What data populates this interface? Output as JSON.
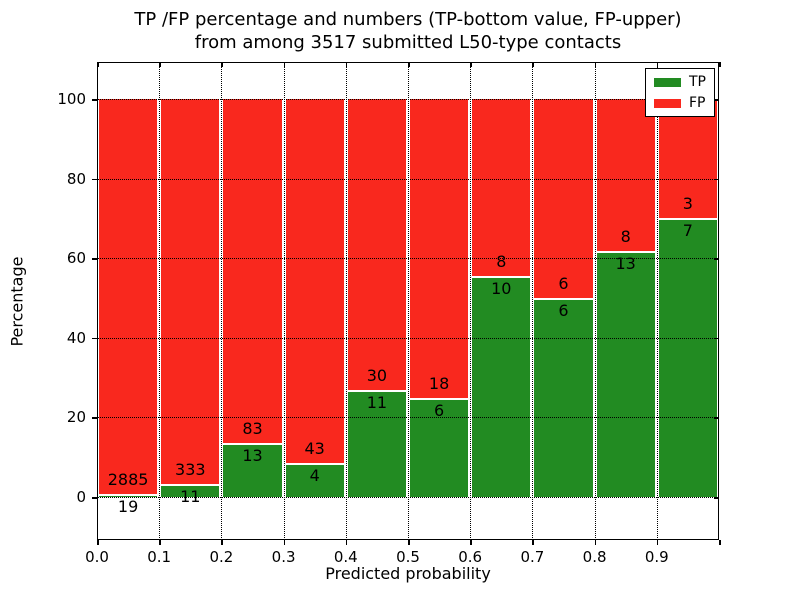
{
  "title": {
    "line1": "TP /FP percentage and numbers (TP-bottom value, FP-upper)",
    "line2": "from among 3517 submitted L50-type contacts"
  },
  "axes": {
    "xlabel": "Predicted probability",
    "ylabel": "Percentage",
    "x_tick_labels": [
      "0.0",
      "0.1",
      "0.2",
      "0.3",
      "0.4",
      "0.5",
      "0.6",
      "0.7",
      "0.8",
      "0.9"
    ],
    "y_tick_labels": [
      "0",
      "20",
      "40",
      "60",
      "80",
      "100"
    ],
    "y_tick_values": [
      0,
      20,
      40,
      60,
      80,
      100
    ]
  },
  "legend": {
    "position": "upper-right",
    "items": [
      {
        "label": "TP",
        "color": "#228b22"
      },
      {
        "label": "FP",
        "color": "#f9281e"
      }
    ]
  },
  "colors": {
    "tp": "#228b22",
    "fp": "#f9281e",
    "grid": "#000000",
    "background": "#ffffff"
  },
  "chart_data": {
    "type": "bar",
    "stacked": true,
    "title": "TP /FP percentage and numbers (TP-bottom value, FP-upper) from among 3517 submitted L50-type contacts",
    "xlabel": "Predicted probability",
    "ylabel": "Percentage",
    "total_contacts": 3517,
    "categories": [
      "0.0-0.1",
      "0.1-0.2",
      "0.2-0.3",
      "0.3-0.4",
      "0.4-0.5",
      "0.5-0.6",
      "0.6-0.7",
      "0.7-0.8",
      "0.8-0.9",
      "0.9-1.0"
    ],
    "bin_starts": [
      0.0,
      0.1,
      0.2,
      0.3,
      0.4,
      0.5,
      0.6,
      0.7,
      0.8,
      0.9
    ],
    "series": [
      {
        "name": "TP",
        "counts": [
          19,
          11,
          13,
          4,
          11,
          6,
          10,
          6,
          13,
          7
        ]
      },
      {
        "name": "FP",
        "counts": [
          2885,
          333,
          83,
          43,
          30,
          18,
          8,
          6,
          8,
          3
        ]
      }
    ],
    "tp_percent": [
      0.65,
      3.2,
      13.54,
      8.51,
      26.83,
      25.0,
      55.56,
      50.0,
      61.9,
      70.0
    ],
    "fp_percent": [
      99.35,
      96.8,
      86.46,
      91.49,
      73.17,
      75.0,
      44.44,
      50.0,
      38.1,
      30.0
    ],
    "xlim": [
      0.0,
      1.0
    ],
    "ylim": [
      -10.8,
      109.3
    ],
    "grid": true,
    "legend_position": "upper right"
  }
}
